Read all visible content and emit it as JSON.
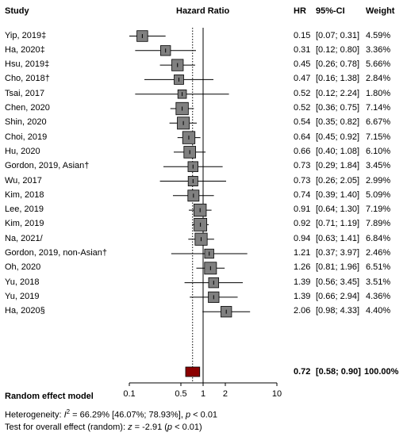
{
  "headers": {
    "study": "Study",
    "axis_title": "Hazard Ratio",
    "hr": "HR",
    "ci": "95%-CI",
    "weight": "Weight"
  },
  "chart_data": {
    "type": "forest",
    "x_scale": "log",
    "xlim": [
      0.1,
      10
    ],
    "x_ticks": [
      0.1,
      0.5,
      1,
      2,
      10
    ],
    "x_tick_labels": [
      "0.1",
      "0.5",
      "1",
      "2",
      "10"
    ],
    "reference_line": 1,
    "pooled_line": 0.72,
    "studies": [
      {
        "label": "Yip, 2019‡",
        "hr": 0.15,
        "lo": 0.07,
        "hi": 0.31,
        "hr_text": "0.15",
        "ci_text": "[0.07; 0.31]",
        "weight": "4.59%"
      },
      {
        "label": "Ha, 2020‡",
        "hr": 0.31,
        "lo": 0.12,
        "hi": 0.8,
        "hr_text": "0.31",
        "ci_text": "[0.12; 0.80]",
        "weight": "3.36%"
      },
      {
        "label": "Hsu, 2019‡",
        "hr": 0.45,
        "lo": 0.26,
        "hi": 0.78,
        "hr_text": "0.45",
        "ci_text": "[0.26; 0.78]",
        "weight": "5.66%"
      },
      {
        "label": "Cho, 2018†",
        "hr": 0.47,
        "lo": 0.16,
        "hi": 1.38,
        "hr_text": "0.47",
        "ci_text": "[0.16; 1.38]",
        "weight": "2.84%"
      },
      {
        "label": "Tsai, 2017",
        "hr": 0.52,
        "lo": 0.12,
        "hi": 2.24,
        "hr_text": "0.52",
        "ci_text": "[0.12; 2.24]",
        "weight": "1.80%"
      },
      {
        "label": "Chen, 2020",
        "hr": 0.52,
        "lo": 0.36,
        "hi": 0.75,
        "hr_text": "0.52",
        "ci_text": "[0.36; 0.75]",
        "weight": "7.14%"
      },
      {
        "label": "Shin, 2020",
        "hr": 0.54,
        "lo": 0.35,
        "hi": 0.82,
        "hr_text": "0.54",
        "ci_text": "[0.35; 0.82]",
        "weight": "6.67%"
      },
      {
        "label": "Choi, 2019",
        "hr": 0.64,
        "lo": 0.45,
        "hi": 0.92,
        "hr_text": "0.64",
        "ci_text": "[0.45; 0.92]",
        "weight": "7.15%"
      },
      {
        "label": "Hu, 2020",
        "hr": 0.66,
        "lo": 0.4,
        "hi": 1.08,
        "hr_text": "0.66",
        "ci_text": "[0.40; 1.08]",
        "weight": "6.10%"
      },
      {
        "label": "Gordon, 2019, Asian†",
        "hr": 0.73,
        "lo": 0.29,
        "hi": 1.84,
        "hr_text": "0.73",
        "ci_text": "[0.29; 1.84]",
        "weight": "3.45%"
      },
      {
        "label": "Wu, 2017",
        "hr": 0.73,
        "lo": 0.26,
        "hi": 2.05,
        "hr_text": "0.73",
        "ci_text": "[0.26; 2.05]",
        "weight": "2.99%"
      },
      {
        "label": "Kim, 2018",
        "hr": 0.74,
        "lo": 0.39,
        "hi": 1.4,
        "hr_text": "0.74",
        "ci_text": "[0.39; 1.40]",
        "weight": "5.09%"
      },
      {
        "label": "Lee, 2019",
        "hr": 0.91,
        "lo": 0.64,
        "hi": 1.3,
        "hr_text": "0.91",
        "ci_text": "[0.64; 1.30]",
        "weight": "7.19%"
      },
      {
        "label": "Kim, 2019",
        "hr": 0.92,
        "lo": 0.71,
        "hi": 1.19,
        "hr_text": "0.92",
        "ci_text": "[0.71; 1.19]",
        "weight": "7.89%"
      },
      {
        "label": "Na, 2021/",
        "hr": 0.94,
        "lo": 0.63,
        "hi": 1.41,
        "hr_text": "0.94",
        "ci_text": "[0.63; 1.41]",
        "weight": "6.84%"
      },
      {
        "label": "Gordon, 2019, non-Asian†",
        "hr": 1.21,
        "lo": 0.37,
        "hi": 3.97,
        "hr_text": "1.21",
        "ci_text": "[0.37; 3.97]",
        "weight": "2.46%"
      },
      {
        "label": "Oh, 2020",
        "hr": 1.26,
        "lo": 0.81,
        "hi": 1.96,
        "hr_text": "1.26",
        "ci_text": "[0.81; 1.96]",
        "weight": "6.51%"
      },
      {
        "label": "Yu, 2018",
        "hr": 1.39,
        "lo": 0.56,
        "hi": 3.45,
        "hr_text": "1.39",
        "ci_text": "[0.56; 3.45]",
        "weight": "3.51%"
      },
      {
        "label": "Yu, 2019",
        "hr": 1.39,
        "lo": 0.66,
        "hi": 2.94,
        "hr_text": "1.39",
        "ci_text": "[0.66; 2.94]",
        "weight": "4.36%"
      },
      {
        "label": "Ha, 2020§",
        "hr": 2.06,
        "lo": 0.98,
        "hi": 4.33,
        "hr_text": "2.06",
        "ci_text": "[0.98; 4.33]",
        "weight": "4.40%"
      }
    ],
    "pooled": {
      "hr": 0.72,
      "lo": 0.58,
      "hi": 0.9,
      "hr_text": "0.72",
      "ci_text": "[0.58; 0.90]",
      "weight": "100.00%",
      "color": "#8b0000"
    },
    "box_color": "#808080"
  },
  "footer": {
    "model_label": "Random effect model",
    "heterogeneity_prefix": "Heterogeneity: ",
    "i2_symbol": "I",
    "i2_sup": "2",
    "heterogeneity_values": " = 66.29% [46.07%; 78.93%], ",
    "p_symbol": "p",
    "heterogeneity_p": " < 0.01",
    "overall_prefix": "Test for overall effect (random): ",
    "z_symbol": "z",
    "overall_values": " = -2.91 (",
    "overall_p": " < 0.01)"
  }
}
